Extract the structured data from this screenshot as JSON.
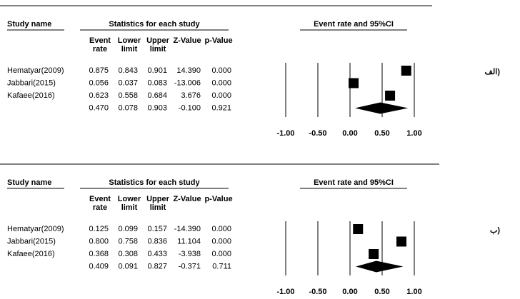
{
  "chart_data": [
    {
      "type": "forest",
      "label": "الف)",
      "header_group": "Statistics for each study",
      "plot_title": "Event rate and 95%CI",
      "columns": [
        "Study name",
        "Event rate",
        "Lower limit",
        "Upper limit",
        "Z-Value",
        "p-Value"
      ],
      "rows": [
        {
          "name": "Hematyar(2009)",
          "values": [
            0.875,
            0.843,
            0.901,
            14.39,
            0
          ],
          "value_labels": [
            "0.875",
            "0.843",
            "0.901",
            "14.390",
            "0.000"
          ]
        },
        {
          "name": "Jabbari(2015)",
          "values": [
            0.056,
            0.037,
            0.083,
            -13.006,
            0
          ],
          "value_labels": [
            "0.056",
            "0.037",
            "0.083",
            "-13.006",
            "0.000"
          ]
        },
        {
          "name": "Kafaee(2016)",
          "values": [
            0.623,
            0.558,
            0.684,
            3.676,
            0
          ],
          "value_labels": [
            "0.623",
            "0.558",
            "0.684",
            "3.676",
            "0.000"
          ]
        },
        {
          "name": null,
          "values": [
            0.47,
            0.078,
            0.903,
            -0.1,
            0.921
          ],
          "value_labels": [
            "0.470",
            "0.078",
            "0.903",
            "-0.100",
            "0.921"
          ]
        }
      ],
      "xlim": [
        -1,
        1
      ],
      "xticks": [
        {
          "value": -1,
          "label": "-1.00"
        },
        {
          "value": -0.5,
          "label": "-0.50"
        },
        {
          "value": 0,
          "label": "0.00"
        },
        {
          "value": 0.5,
          "label": "0.50"
        },
        {
          "value": 1,
          "label": "1.00"
        }
      ],
      "color": "#000000"
    },
    {
      "type": "forest",
      "label": "ب)",
      "header_group": "Statistics for each study",
      "plot_title": "Event rate and 95%CI",
      "columns": [
        "Study name",
        "Event rate",
        "Lower limit",
        "Upper limit",
        "Z-Value",
        "p-Value"
      ],
      "rows": [
        {
          "name": "Hematyar(2009)",
          "values": [
            0.125,
            0.099,
            0.157,
            -14.39,
            0
          ],
          "value_labels": [
            "0.125",
            "0.099",
            "0.157",
            "-14.390",
            "0.000"
          ]
        },
        {
          "name": "Jabbari(2015)",
          "values": [
            0.8,
            0.758,
            0.836,
            11.104,
            0
          ],
          "value_labels": [
            "0.800",
            "0.758",
            "0.836",
            "11.104",
            "0.000"
          ]
        },
        {
          "name": "Kafaee(2016)",
          "values": [
            0.368,
            0.308,
            0.433,
            -3.938,
            0
          ],
          "value_labels": [
            "0.368",
            "0.308",
            "0.433",
            "-3.938",
            "0.000"
          ]
        },
        {
          "name": null,
          "values": [
            0.409,
            0.091,
            0.827,
            -0.371,
            0.711
          ],
          "value_labels": [
            "0.409",
            "0.091",
            "0.827",
            "-0.371",
            "0.711"
          ]
        }
      ],
      "xlim": [
        -1,
        1
      ],
      "xticks": [
        {
          "value": -1,
          "label": "-1.00"
        },
        {
          "value": -0.5,
          "label": "-0.50"
        },
        {
          "value": 0,
          "label": "0.00"
        },
        {
          "value": 0.5,
          "label": "0.50"
        },
        {
          "value": 1,
          "label": "1.00"
        }
      ],
      "color": "#000000"
    }
  ]
}
